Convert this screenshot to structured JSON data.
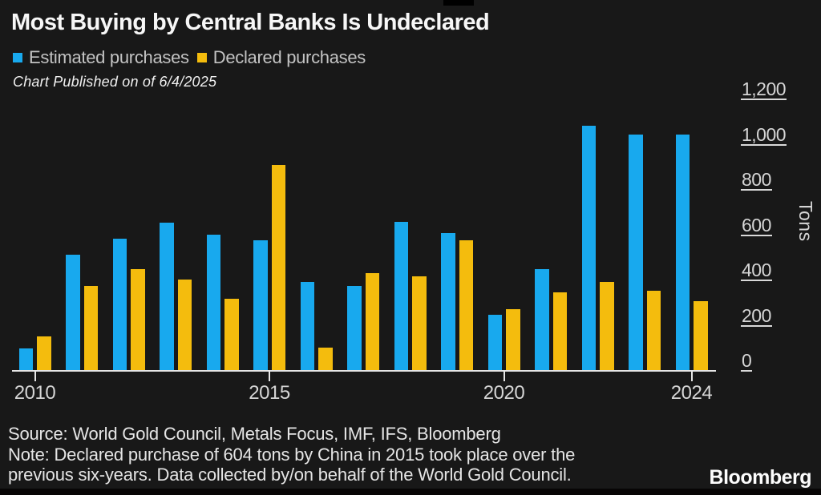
{
  "header": {
    "title": "Most Buying by Central Banks Is Undeclared",
    "published": "Chart Published on of 6/4/2025",
    "legend": [
      {
        "label": "Estimated purchases",
        "color": "#18a9ee"
      },
      {
        "label": "Declared purchases",
        "color": "#f4bc0d"
      }
    ]
  },
  "chart_data": {
    "type": "bar",
    "title": "Most Buying by Central Banks Is Undeclared",
    "xlabel": "",
    "ylabel": "Tons",
    "ylim": [
      0,
      1200
    ],
    "grid": false,
    "legend_position": "top",
    "categories": [
      2010,
      2011,
      2012,
      2013,
      2014,
      2015,
      2016,
      2017,
      2018,
      2019,
      2020,
      2021,
      2022,
      2023,
      2024
    ],
    "series": [
      {
        "name": "Estimated purchases",
        "color": "#18a9ee",
        "values": [
          95,
          510,
          580,
          650,
          600,
          575,
          390,
          370,
          655,
          605,
          245,
          445,
          1080,
          1040,
          1040
        ]
      },
      {
        "name": "Declared purchases",
        "color": "#f4bc0d",
        "values": [
          150,
          370,
          445,
          400,
          315,
          905,
          100,
          430,
          415,
          575,
          270,
          345,
          390,
          350,
          305
        ]
      }
    ],
    "yticks": [
      0,
      200,
      400,
      600,
      800,
      1000,
      1200
    ],
    "ytick_labels": [
      "0",
      "200",
      "400",
      "600",
      "800",
      "1,000",
      "1,200"
    ],
    "xtick_years": [
      2010,
      2015,
      2020,
      2024
    ],
    "xtick_labels": [
      "2010",
      "2015",
      "2020",
      "2024"
    ]
  },
  "footer": {
    "source": "Source: World Gold Council, Metals Focus, IMF, IFS, Bloomberg",
    "note_line1": "Note: Declared purchase of 604 tons by China in 2015 took place over the",
    "note_line2": "previous six-years. Data collected by/on behalf of the World Gold Council.",
    "brand": "Bloomberg"
  },
  "colors": {
    "background": "#181818",
    "bar_blue": "#18a9ee",
    "bar_yellow": "#f4bc0d",
    "axis": "#e6e6e6"
  }
}
